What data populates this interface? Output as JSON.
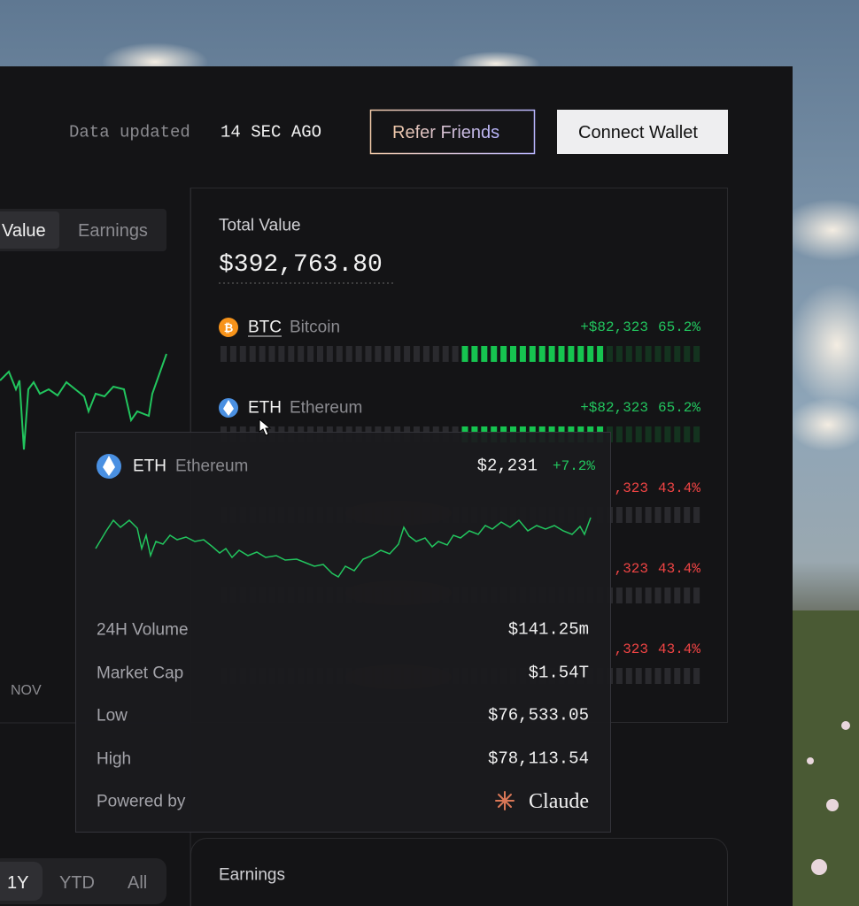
{
  "header": {
    "status_label": "Data updated",
    "status_value": "14 SEC AGO",
    "refer_button": "Refer Friends",
    "connect_button": "Connect Wallet"
  },
  "left_panel": {
    "tabs": [
      "Value",
      "Earnings"
    ],
    "axis_label": "NOV",
    "range_tabs": [
      "1Y",
      "YTD",
      "All"
    ]
  },
  "total_value": {
    "label": "Total Value",
    "value": "$392,763.80"
  },
  "assets": [
    {
      "symbol": "BTC",
      "name": "Bitcoin",
      "change": "+$82,323",
      "percent": "65.2%"
    },
    {
      "symbol": "ETH",
      "name": "Ethereum",
      "change": "+$82,323",
      "percent": "65.2%"
    },
    {
      "change": ",323",
      "percent": "43.4%"
    },
    {
      "change": ",323",
      "percent": "43.4%"
    },
    {
      "change": ",323",
      "percent": "43.4%"
    }
  ],
  "tooltip": {
    "symbol": "ETH",
    "name": "Ethereum",
    "price": "$2,231",
    "change": "+7.2%",
    "stats": [
      {
        "label": "24H Volume",
        "value": "$141.25m"
      },
      {
        "label": "Market Cap",
        "value": "$1.54T"
      },
      {
        "label": "Low",
        "value": "$76,533.05"
      },
      {
        "label": "High",
        "value": "$78,113.54"
      }
    ],
    "powered_by": "Powered by",
    "brand": "Claude"
  },
  "earnings": {
    "label": "Earnings"
  }
}
